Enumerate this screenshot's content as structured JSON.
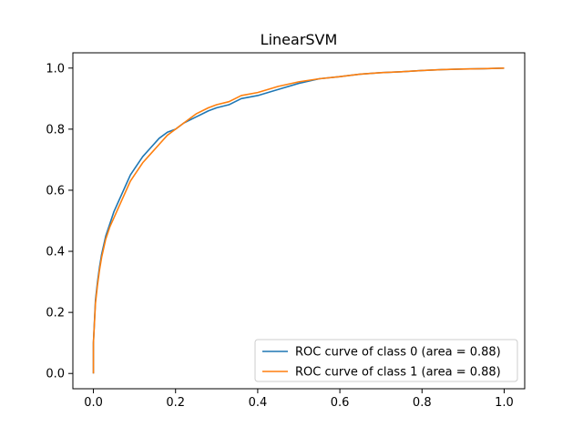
{
  "chart_data": {
    "type": "line",
    "title": "LinearSVM",
    "xlabel": "",
    "ylabel": "",
    "xlim": [
      -0.05,
      1.05
    ],
    "ylim": [
      -0.05,
      1.05
    ],
    "xticks": [
      0.0,
      0.2,
      0.4,
      0.6,
      0.8,
      1.0
    ],
    "yticks": [
      0.0,
      0.2,
      0.4,
      0.6,
      0.8,
      1.0
    ],
    "xtick_labels": [
      "0.0",
      "0.2",
      "0.4",
      "0.6",
      "0.8",
      "1.0"
    ],
    "ytick_labels": [
      "0.0",
      "0.2",
      "0.4",
      "0.6",
      "0.8",
      "1.0"
    ],
    "grid": false,
    "legend_position": "lower-right",
    "series": [
      {
        "name": "ROC curve of class 0 (area = 0.88)",
        "color": "#1f77b4",
        "x": [
          0.0,
          0.0,
          0.005,
          0.01,
          0.015,
          0.02,
          0.03,
          0.04,
          0.05,
          0.06,
          0.07,
          0.08,
          0.09,
          0.1,
          0.12,
          0.14,
          0.16,
          0.18,
          0.2,
          0.22,
          0.25,
          0.28,
          0.3,
          0.33,
          0.36,
          0.4,
          0.45,
          0.5,
          0.55,
          0.6,
          0.65,
          0.7,
          0.75,
          0.8,
          0.85,
          0.9,
          0.95,
          1.0
        ],
        "y": [
          0.0,
          0.1,
          0.24,
          0.3,
          0.35,
          0.39,
          0.45,
          0.49,
          0.53,
          0.56,
          0.59,
          0.62,
          0.65,
          0.67,
          0.71,
          0.74,
          0.77,
          0.79,
          0.8,
          0.82,
          0.84,
          0.86,
          0.87,
          0.88,
          0.9,
          0.91,
          0.93,
          0.95,
          0.965,
          0.972,
          0.98,
          0.985,
          0.988,
          0.992,
          0.995,
          0.997,
          0.998,
          1.0
        ]
      },
      {
        "name": "ROC curve of class 1 (area = 0.88)",
        "color": "#ff7f0e",
        "x": [
          0.0,
          0.0,
          0.005,
          0.01,
          0.015,
          0.02,
          0.03,
          0.04,
          0.05,
          0.06,
          0.07,
          0.08,
          0.09,
          0.1,
          0.12,
          0.14,
          0.16,
          0.18,
          0.2,
          0.22,
          0.25,
          0.28,
          0.3,
          0.33,
          0.36,
          0.4,
          0.45,
          0.5,
          0.55,
          0.6,
          0.65,
          0.7,
          0.75,
          0.8,
          0.85,
          0.9,
          0.95,
          1.0
        ],
        "y": [
          0.0,
          0.1,
          0.23,
          0.29,
          0.34,
          0.38,
          0.44,
          0.48,
          0.51,
          0.54,
          0.57,
          0.6,
          0.63,
          0.65,
          0.69,
          0.72,
          0.75,
          0.78,
          0.8,
          0.82,
          0.85,
          0.87,
          0.88,
          0.89,
          0.91,
          0.92,
          0.94,
          0.955,
          0.965,
          0.972,
          0.98,
          0.985,
          0.988,
          0.992,
          0.995,
          0.997,
          0.998,
          1.0
        ]
      }
    ]
  }
}
